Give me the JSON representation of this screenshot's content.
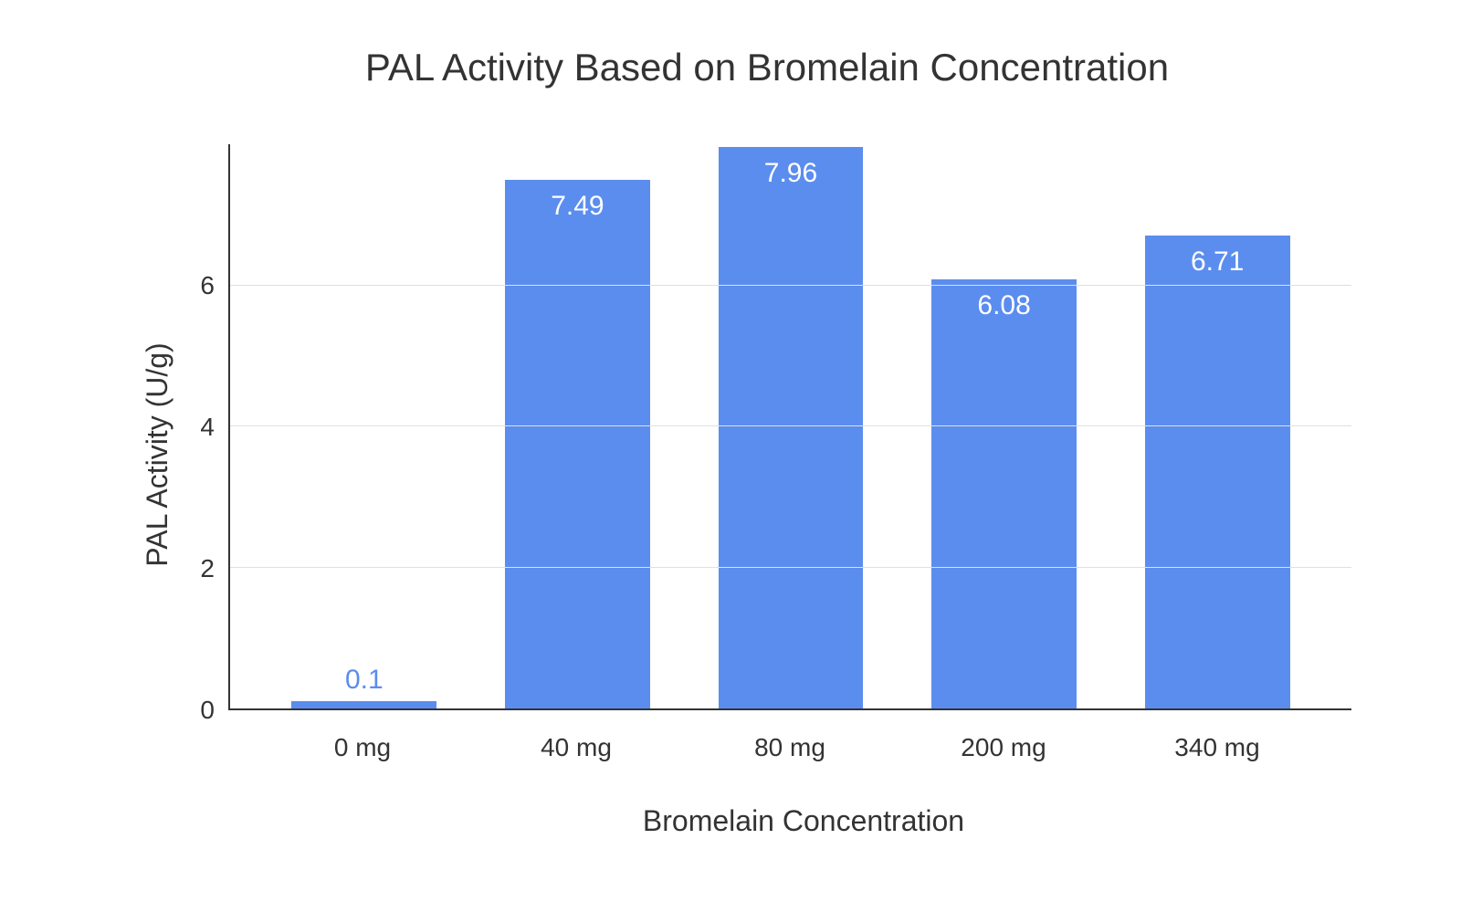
{
  "chart": {
    "type": "bar",
    "title": "PAL Activity Based on Bromelain Concentration",
    "title_fontsize": 42,
    "title_color": "#333333",
    "ylabel": "PAL Activity (U/g)",
    "ylabel_fontsize": 32,
    "xlabel": "Bromelain Concentration",
    "xlabel_fontsize": 32,
    "categories": [
      "0 mg",
      "40 mg",
      "80 mg",
      "200 mg",
      "340 mg"
    ],
    "values": [
      0.1,
      7.49,
      7.96,
      6.08,
      6.71
    ],
    "value_labels": [
      "0.1",
      "7.49",
      "7.96",
      "6.08",
      "6.71"
    ],
    "bar_color": "#5b8def",
    "ymin": 0,
    "ymax": 8,
    "yticks": [
      0,
      2,
      4,
      6
    ],
    "ytick_labels": [
      "0",
      "2",
      "4",
      "6"
    ],
    "background_color": "#ffffff",
    "grid_color": "#e0e0e0",
    "axis_color": "#333333",
    "text_color": "#333333",
    "label_inside_color": "#ffffff",
    "label_outside_color": "#5b8def",
    "label_fontsize": 30,
    "tick_fontsize": 28,
    "bar_width_ratio": 0.68,
    "label_threshold": 1.0
  }
}
